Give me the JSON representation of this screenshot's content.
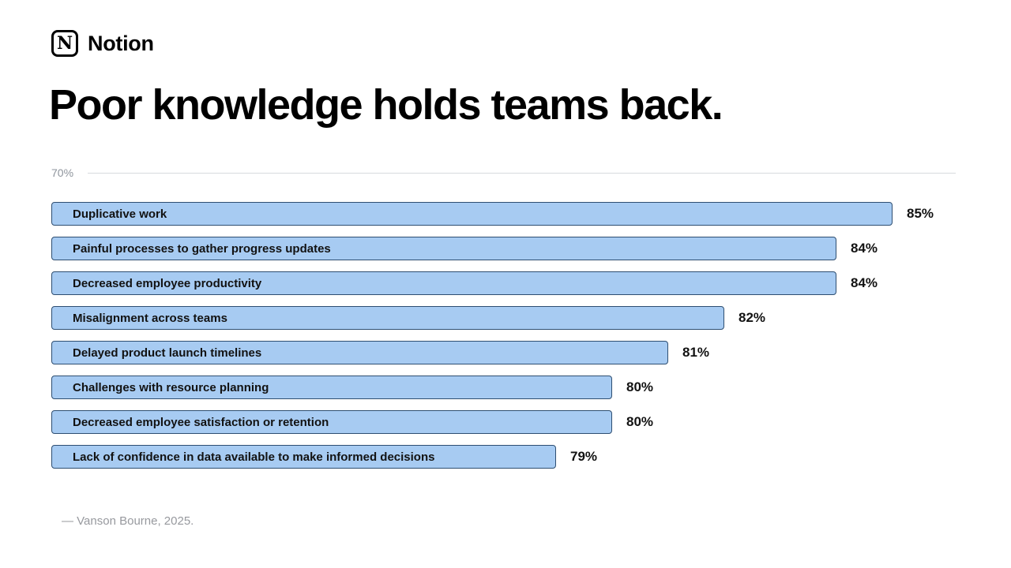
{
  "brand": {
    "name": "Notion",
    "logo_letter": "N"
  },
  "page_title": "Poor knowledge holds teams back.",
  "chart_data": {
    "type": "bar",
    "orientation": "horizontal",
    "title": "Poor knowledge holds teams back.",
    "axis_baseline_label": "70%",
    "axis_min": 70,
    "axis_max": 85,
    "value_suffix": "%",
    "categories": [
      "Duplicative work",
      "Painful processes to gather progress updates",
      "Decreased employee productivity",
      "Misalignment across teams",
      "Delayed product launch timelines",
      "Challenges with resource planning",
      "Decreased employee satisfaction or retention",
      "Lack of confidence in data available to make informed decisions"
    ],
    "values": [
      85,
      84,
      84,
      82,
      81,
      80,
      80,
      79
    ],
    "legend": "none",
    "grid": "off",
    "colors": {
      "bar_fill": "#A7CBF2",
      "bar_border": "#2E4E71",
      "axis_line": "#D7DADE",
      "axis_label": "#8E949C",
      "bar_label": "#121212",
      "value_label": "#121212"
    }
  },
  "footer": {
    "source": "— Vanson Bourne, 2025."
  }
}
